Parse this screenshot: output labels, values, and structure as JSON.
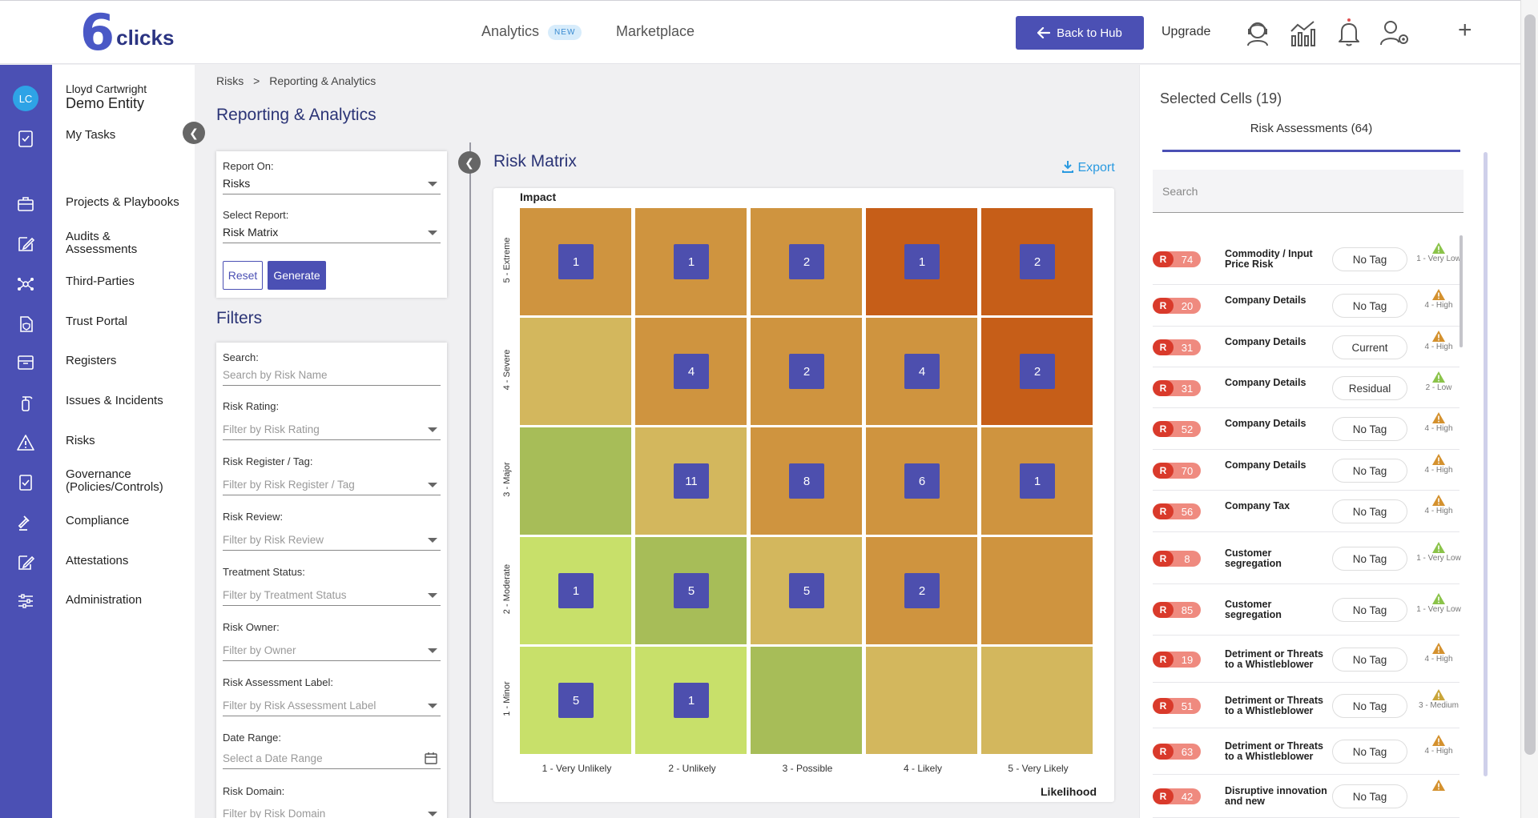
{
  "app": {
    "logo_six": "6",
    "logo_word": "clicks",
    "nav_analytics": "Analytics",
    "nav_analytics_badge": "NEW",
    "nav_marketplace": "Marketplace",
    "back_to_hub": "Back to Hub",
    "upgrade": "Upgrade",
    "plus": "+",
    "brand_color": "#4b50b4"
  },
  "user": {
    "initials": "LC",
    "name": "Lloyd Cartwright",
    "entity": "Demo Entity"
  },
  "sidebar": {
    "my_tasks": "My Tasks",
    "items": [
      {
        "label": "Projects & Playbooks",
        "icon": "briefcase-icon"
      },
      {
        "label": "Audits & Assessments",
        "icon": "edit-icon"
      },
      {
        "label": "Third-Parties",
        "icon": "network-icon"
      },
      {
        "label": "Trust Portal",
        "icon": "shield-doc-icon"
      },
      {
        "label": "Registers",
        "icon": "register-icon"
      },
      {
        "label": "Issues & Incidents",
        "icon": "fire-extinguisher-icon"
      },
      {
        "label": "Risks",
        "icon": "warning-icon"
      },
      {
        "label": "Governance (Policies/Controls)",
        "icon": "policy-icon"
      },
      {
        "label": "Compliance",
        "icon": "gavel-icon"
      },
      {
        "label": "Attestations",
        "icon": "signature-icon"
      },
      {
        "label": "Administration",
        "icon": "sliders-icon"
      }
    ]
  },
  "breadcrumb": {
    "root": "Risks",
    "sep": ">",
    "current": "Reporting & Analytics"
  },
  "page_title": "Reporting & Analytics",
  "report": {
    "report_on_label": "Report On:",
    "report_on_value": "Risks",
    "select_report_label": "Select Report:",
    "select_report_value": "Risk Matrix",
    "reset": "Reset",
    "generate": "Generate"
  },
  "filters": {
    "title": "Filters",
    "fields": [
      {
        "label": "Search:",
        "placeholder": "Search by Risk Name",
        "type": "text"
      },
      {
        "label": "Risk Rating:",
        "placeholder": "Filter by Risk Rating",
        "type": "select"
      },
      {
        "label": "Risk Register / Tag:",
        "placeholder": "Filter by Risk Register / Tag",
        "type": "select"
      },
      {
        "label": "Risk Review:",
        "placeholder": "Filter by Risk Review",
        "type": "select"
      },
      {
        "label": "Treatment Status:",
        "placeholder": "Filter by Treatment Status",
        "type": "select"
      },
      {
        "label": "Risk Owner:",
        "placeholder": "Filter by Owner",
        "type": "select"
      },
      {
        "label": "Risk Assessment Label:",
        "placeholder": "Filter by Risk Assessment Label",
        "type": "select"
      },
      {
        "label": "Date Range:",
        "placeholder": "Select a Date Range",
        "type": "date"
      },
      {
        "label": "Risk Domain:",
        "placeholder": "Filter by Risk Domain",
        "type": "select"
      }
    ]
  },
  "matrix": {
    "title": "Risk Matrix",
    "export": "Export",
    "impact_label": "Impact",
    "likelihood_label": "Likelihood",
    "impact_levels": [
      "5 - Extreme",
      "4 - Severe",
      "3 - Major",
      "2 - Moderate",
      "1 - Minor"
    ],
    "likelihood_levels": [
      "1 - Very Unlikely",
      "2 - Unlikely",
      "3 - Possible",
      "4 - Likely",
      "5 - Very Likely"
    ],
    "colors": {
      "light_green": "#c8e06a",
      "green": "#a7bd58",
      "yellow": "#d3b75d",
      "orange": "#cf943f",
      "red_orange": "#c65e18"
    },
    "rows": [
      {
        "cells": [
          {
            "count": "1",
            "color": "orange"
          },
          {
            "count": "1",
            "color": "orange"
          },
          {
            "count": "2",
            "color": "orange"
          },
          {
            "count": "1",
            "color": "red_orange"
          },
          {
            "count": "2",
            "color": "red_orange"
          }
        ]
      },
      {
        "cells": [
          {
            "count": "",
            "color": "yellow"
          },
          {
            "count": "4",
            "color": "orange"
          },
          {
            "count": "2",
            "color": "orange"
          },
          {
            "count": "4",
            "color": "orange"
          },
          {
            "count": "2",
            "color": "red_orange"
          }
        ]
      },
      {
        "cells": [
          {
            "count": "",
            "color": "green"
          },
          {
            "count": "11",
            "color": "yellow"
          },
          {
            "count": "8",
            "color": "orange"
          },
          {
            "count": "6",
            "color": "orange"
          },
          {
            "count": "1",
            "color": "orange"
          }
        ]
      },
      {
        "cells": [
          {
            "count": "1",
            "color": "light_green"
          },
          {
            "count": "5",
            "color": "green"
          },
          {
            "count": "5",
            "color": "yellow"
          },
          {
            "count": "2",
            "color": "orange"
          },
          {
            "count": "",
            "color": "orange"
          }
        ]
      },
      {
        "cells": [
          {
            "count": "5",
            "color": "light_green"
          },
          {
            "count": "1",
            "color": "light_green"
          },
          {
            "count": "",
            "color": "green"
          },
          {
            "count": "",
            "color": "yellow"
          },
          {
            "count": "",
            "color": "yellow"
          }
        ]
      }
    ]
  },
  "right_panel": {
    "selected_cells": "Selected Cells (19)",
    "tab": "Risk Assessments (64)",
    "search_placeholder": "Search",
    "rating_colors": {
      "low": "#8bc34a",
      "medium": "#c9a53a",
      "high": "#d4912e"
    },
    "items": [
      {
        "id_prefix": "R",
        "score": "74",
        "name": "Commodity / Input Price Risk",
        "tag": "No Tag",
        "rating": "1 - Very Low",
        "level": "low"
      },
      {
        "id_prefix": "R",
        "score": "20",
        "name": "Company Details",
        "tag": "No Tag",
        "rating": "4 - High",
        "level": "high"
      },
      {
        "id_prefix": "R",
        "score": "31",
        "name": "Company Details",
        "tag": "Current",
        "rating": "4 - High",
        "level": "high"
      },
      {
        "id_prefix": "R",
        "score": "31",
        "name": "Company Details",
        "tag": "Residual",
        "rating": "2 - Low",
        "level": "low"
      },
      {
        "id_prefix": "R",
        "score": "52",
        "name": "Company Details",
        "tag": "No Tag",
        "rating": "4 - High",
        "level": "high"
      },
      {
        "id_prefix": "R",
        "score": "70",
        "name": "Company Details",
        "tag": "No Tag",
        "rating": "4 - High",
        "level": "high"
      },
      {
        "id_prefix": "R",
        "score": "56",
        "name": "Company Tax",
        "tag": "No Tag",
        "rating": "4 - High",
        "level": "high"
      },
      {
        "id_prefix": "R",
        "score": "8",
        "name": "Customer segregation",
        "tag": "No Tag",
        "rating": "1 - Very Low",
        "level": "low"
      },
      {
        "id_prefix": "R",
        "score": "85",
        "name": "Customer segregation",
        "tag": "No Tag",
        "rating": "1 - Very Low",
        "level": "low"
      },
      {
        "id_prefix": "R",
        "score": "19",
        "name": "Detriment or Threats to a Whistleblower",
        "tag": "No Tag",
        "rating": "4 - High",
        "level": "high"
      },
      {
        "id_prefix": "R",
        "score": "51",
        "name": "Detriment or Threats to a Whistleblower",
        "tag": "No Tag",
        "rating": "3 - Medium",
        "level": "medium"
      },
      {
        "id_prefix": "R",
        "score": "63",
        "name": "Detriment or Threats to a Whistleblower",
        "tag": "No Tag",
        "rating": "4 - High",
        "level": "high"
      },
      {
        "id_prefix": "R",
        "score": "42",
        "name": "Disruptive innovation and new",
        "tag": "No Tag",
        "rating": "",
        "level": "high"
      }
    ]
  }
}
